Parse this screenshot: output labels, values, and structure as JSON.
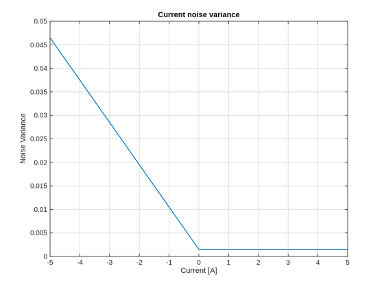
{
  "chart_data": {
    "type": "line",
    "title": "Current noise variance",
    "xlabel": "Current [A]",
    "ylabel": "Noise Variance",
    "xlim": [
      -5,
      5
    ],
    "ylim": [
      0,
      0.05
    ],
    "xticks": [
      -5,
      -4,
      -3,
      -2,
      -1,
      0,
      1,
      2,
      3,
      4,
      5
    ],
    "yticks": [
      0,
      0.005,
      0.01,
      0.015,
      0.02,
      0.025,
      0.03,
      0.035,
      0.04,
      0.045,
      0.05
    ],
    "xtick_labels": [
      "-5",
      "-4",
      "-3",
      "-2",
      "-1",
      "0",
      "1",
      "2",
      "3",
      "4",
      "5"
    ],
    "ytick_labels": [
      "0",
      "0.005",
      "0.01",
      "0.015",
      "0.02",
      "0.025",
      "0.03",
      "0.035",
      "0.04",
      "0.045",
      "0.05"
    ],
    "grid": true,
    "series": [
      {
        "color": "#0072bd",
        "x": [
          -5,
          0,
          5
        ],
        "y": [
          0.0465,
          0.0015,
          0.0015
        ]
      }
    ]
  }
}
